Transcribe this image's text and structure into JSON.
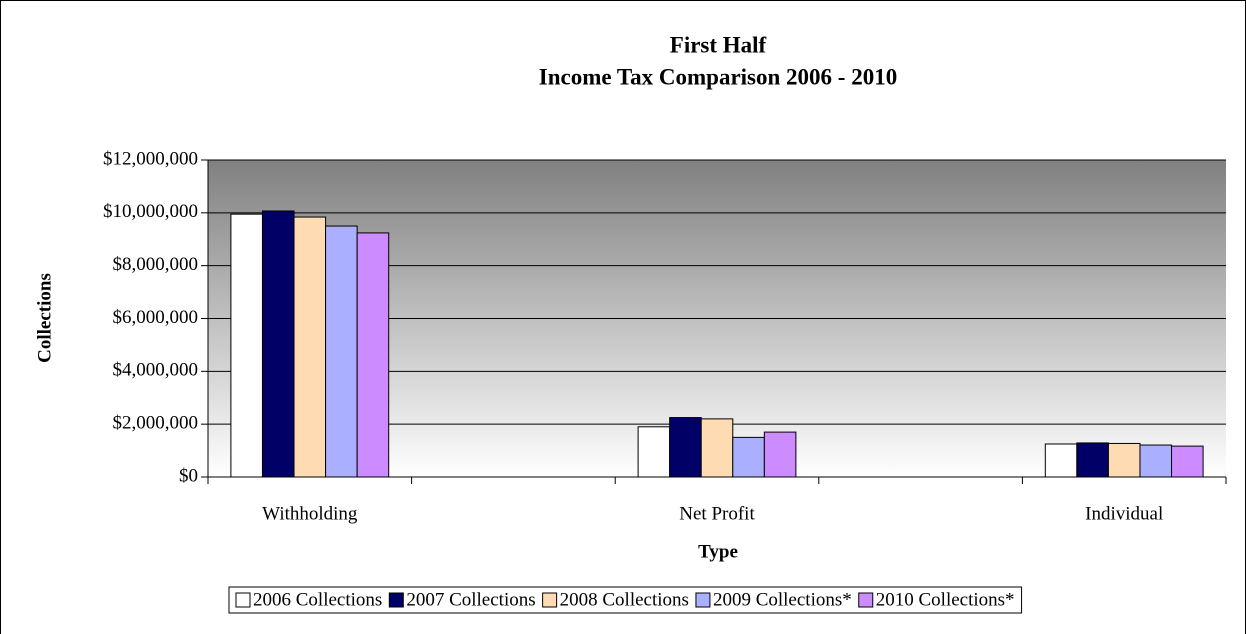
{
  "chart_data": {
    "type": "bar",
    "title": "First Half",
    "subtitle": "Income Tax Comparison 2006 - 2010",
    "x_label": "Type",
    "y_label": "Collections",
    "categories": [
      "Withholding",
      null,
      "Net Profit",
      null,
      "Individual"
    ],
    "series": [
      {
        "name": "2006 Collections",
        "color": "#ffffff",
        "values": [
          9950000,
          null,
          1900000,
          null,
          1250000
        ]
      },
      {
        "name": "2007 Collections",
        "color": "#000066",
        "values": [
          10070000,
          null,
          2250000,
          null,
          1290000
        ]
      },
      {
        "name": "2008 Collections",
        "color": "#ffdbb3",
        "values": [
          9840000,
          null,
          2200000,
          null,
          1270000
        ]
      },
      {
        "name": "2009 Collections*",
        "color": "#aab0ff",
        "values": [
          9500000,
          null,
          1500000,
          null,
          1210000
        ]
      },
      {
        "name": "2010 Collections*",
        "color": "#cc8cff",
        "values": [
          9240000,
          null,
          1700000,
          null,
          1170000
        ]
      }
    ],
    "ylim": [
      0,
      12000000
    ],
    "yticks": [
      {
        "value": 0,
        "label": "$0"
      },
      {
        "value": 2000000,
        "label": "$2,000,000"
      },
      {
        "value": 4000000,
        "label": "$4,000,000"
      },
      {
        "value": 6000000,
        "label": "$6,000,000"
      },
      {
        "value": 8000000,
        "label": "$8,000,000"
      },
      {
        "value": 10000000,
        "label": "$10,000,000"
      },
      {
        "value": 12000000,
        "label": "$12,000,000"
      }
    ],
    "grid": true,
    "legend": "bottom"
  }
}
